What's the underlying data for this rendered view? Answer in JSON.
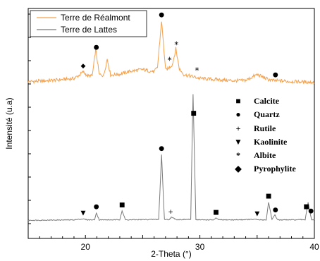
{
  "chart_data": {
    "type": "line",
    "xlabel": "2-Theta (°)",
    "ylabel": "Intensité (u.a)",
    "xlim": [
      15,
      40
    ],
    "xticks": [
      20,
      30,
      40
    ],
    "grid": false,
    "legend_position": "top-left",
    "series": [
      {
        "name": "Terre de Réalmont",
        "color": "#f5a04a",
        "x": [
          15,
          16,
          17,
          18,
          19,
          19.5,
          19.8,
          20.2,
          20.6,
          20.9,
          21.2,
          21.6,
          21.9,
          22.2,
          23,
          24,
          25,
          26,
          26.3,
          26.65,
          27.0,
          27.3,
          27.6,
          27.9,
          28.2,
          28.6,
          29,
          29.5,
          30,
          31,
          32,
          33,
          34,
          35,
          36,
          36.5,
          37,
          38,
          39,
          40
        ],
        "values": [
          0.8,
          0.9,
          1.1,
          1.3,
          1.6,
          2.5,
          3.3,
          2.2,
          2.3,
          9.2,
          2.6,
          2.4,
          6.6,
          2.5,
          2.7,
          3.5,
          3.9,
          3.3,
          4.5,
          16.5,
          3.8,
          4.3,
          5.2,
          9.3,
          4.1,
          2.6,
          2.3,
          2.0,
          1.6,
          1.4,
          1.2,
          1.0,
          1.1,
          2.6,
          1.3,
          1.0,
          1.0,
          0.8,
          0.7,
          0.6
        ]
      },
      {
        "name": "Terre de Lattes",
        "color": "#7a7a7a",
        "x": [
          15,
          17,
          19,
          19.8,
          20.2,
          20.8,
          20.95,
          21.2,
          22.5,
          23.0,
          23.2,
          23.5,
          25,
          26.4,
          26.65,
          26.9,
          27.3,
          27.5,
          28,
          29.2,
          29.4,
          29.65,
          30.2,
          31.2,
          31.4,
          31.7,
          33,
          34.9,
          35.1,
          35.8,
          36.0,
          36.3,
          36.55,
          36.8,
          38,
          39.2,
          39.45,
          39.75,
          40
        ],
        "values": [
          0.2,
          0.3,
          0.4,
          0.8,
          0.4,
          0.4,
          3.5,
          0.4,
          0.4,
          0.5,
          4.3,
          0.4,
          0.5,
          0.6,
          28.5,
          0.6,
          0.5,
          1.5,
          0.5,
          0.6,
          54.5,
          0.5,
          0.4,
          0.4,
          1.1,
          0.4,
          0.4,
          0.6,
          0.4,
          0.4,
          8.0,
          0.5,
          2.5,
          0.4,
          0.4,
          0.5,
          8.0,
          0.4,
          0.4
        ]
      }
    ],
    "phase_key": [
      {
        "marker": "■",
        "label": "Calcite"
      },
      {
        "marker": "●",
        "label": "Quartz"
      },
      {
        "marker": "+",
        "label": "Rutile"
      },
      {
        "marker": "▼",
        "label": "Kaolinite"
      },
      {
        "marker": "*",
        "label": "Albite"
      },
      {
        "marker": "◆",
        "label": "Pyrophylite"
      }
    ],
    "annotations": [
      {
        "series": "Terre de Réalmont",
        "marker": "◆",
        "x": 19.8
      },
      {
        "series": "Terre de Réalmont",
        "marker": "●",
        "x": 20.95
      },
      {
        "series": "Terre de Réalmont",
        "marker": "●",
        "x": 26.65
      },
      {
        "series": "Terre de Réalmont",
        "marker": "*",
        "x": 27.35
      },
      {
        "series": "Terre de Réalmont",
        "marker": "*",
        "x": 27.95
      },
      {
        "series": "Terre de Réalmont",
        "marker": "*",
        "x": 29.75
      },
      {
        "series": "Terre de Réalmont",
        "marker": "●",
        "x": 36.6
      },
      {
        "series": "Terre de Lattes",
        "marker": "▼",
        "x": 19.8
      },
      {
        "series": "Terre de Lattes",
        "marker": "●",
        "x": 20.95
      },
      {
        "series": "Terre de Lattes",
        "marker": "■",
        "x": 23.2
      },
      {
        "series": "Terre de Lattes",
        "marker": "●",
        "x": 26.65
      },
      {
        "series": "Terre de Lattes",
        "marker": "+",
        "x": 27.45
      },
      {
        "series": "Terre de Lattes",
        "marker": "■",
        "x": 29.45
      },
      {
        "series": "Terre de Lattes",
        "marker": "■",
        "x": 31.4
      },
      {
        "series": "Terre de Lattes",
        "marker": "▼",
        "x": 35.0
      },
      {
        "series": "Terre de Lattes",
        "marker": "■",
        "x": 36.0
      },
      {
        "series": "Terre de Lattes",
        "marker": "●",
        "x": 36.6
      },
      {
        "series": "Terre de Lattes",
        "marker": "■",
        "x": 39.3
      },
      {
        "series": "Terre de Lattes",
        "marker": "●",
        "x": 39.7
      }
    ]
  }
}
